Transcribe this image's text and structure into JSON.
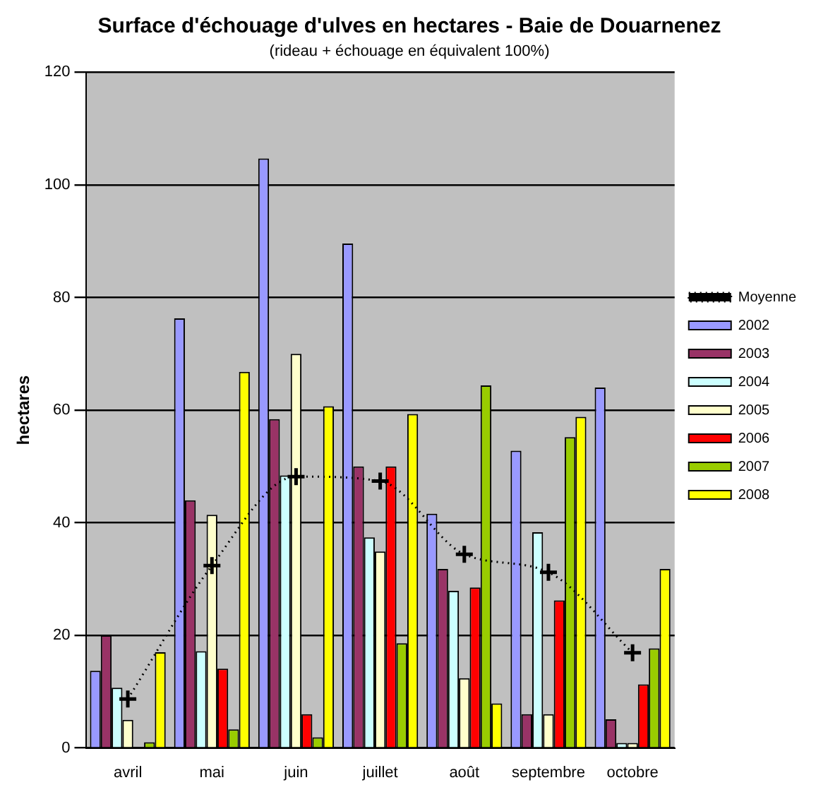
{
  "chart_data": {
    "type": "bar",
    "title": "Surface d'échouage d'ulves en hectares - Baie de Douarnenez",
    "subtitle": "(rideau + échouage en équivalent 100%)",
    "ylabel": "hectares",
    "categories": [
      "avril",
      "mai",
      "juin",
      "juillet",
      "août",
      "septembre",
      "octobre"
    ],
    "series": [
      {
        "name": "2002",
        "color": "#9999ff",
        "values": [
          13.7,
          76.3,
          104.7,
          89.6,
          41.6,
          52.8,
          64
        ]
      },
      {
        "name": "2003",
        "color": "#993366",
        "values": [
          20,
          44,
          58.4,
          50,
          31.8,
          6,
          5.1
        ]
      },
      {
        "name": "2004",
        "color": "#ccffff",
        "values": [
          10.7,
          17.2,
          48.4,
          37.4,
          27.9,
          38.3,
          0.9
        ]
      },
      {
        "name": "2005",
        "color": "#ffffcc",
        "values": [
          5,
          41.4,
          70,
          34.9,
          12.4,
          6,
          0.9
        ]
      },
      {
        "name": "2006",
        "color": "#ff0000",
        "values": [
          0,
          14.1,
          6,
          50,
          28.5,
          26.2,
          11.3
        ]
      },
      {
        "name": "2007",
        "color": "#99cc00",
        "values": [
          1,
          3.3,
          1.9,
          18.6,
          64.4,
          55.2,
          17.7
        ]
      },
      {
        "name": "2008",
        "color": "#ffff00",
        "values": [
          17,
          66.8,
          60.7,
          59.3,
          7.9,
          58.8,
          31.8
        ]
      },
      {
        "name": "Moyenne",
        "type": "line",
        "color": "#000000",
        "line_style": "dotted",
        "marker": "cross",
        "values": [
          8.7,
          32.4,
          48.2,
          47.4,
          34.4,
          31.2,
          16.9
        ]
      }
    ],
    "ylim": [
      0,
      120
    ],
    "yticks": [
      0,
      20,
      40,
      60,
      80,
      100,
      120
    ],
    "grid": "y",
    "legend": "top right"
  }
}
